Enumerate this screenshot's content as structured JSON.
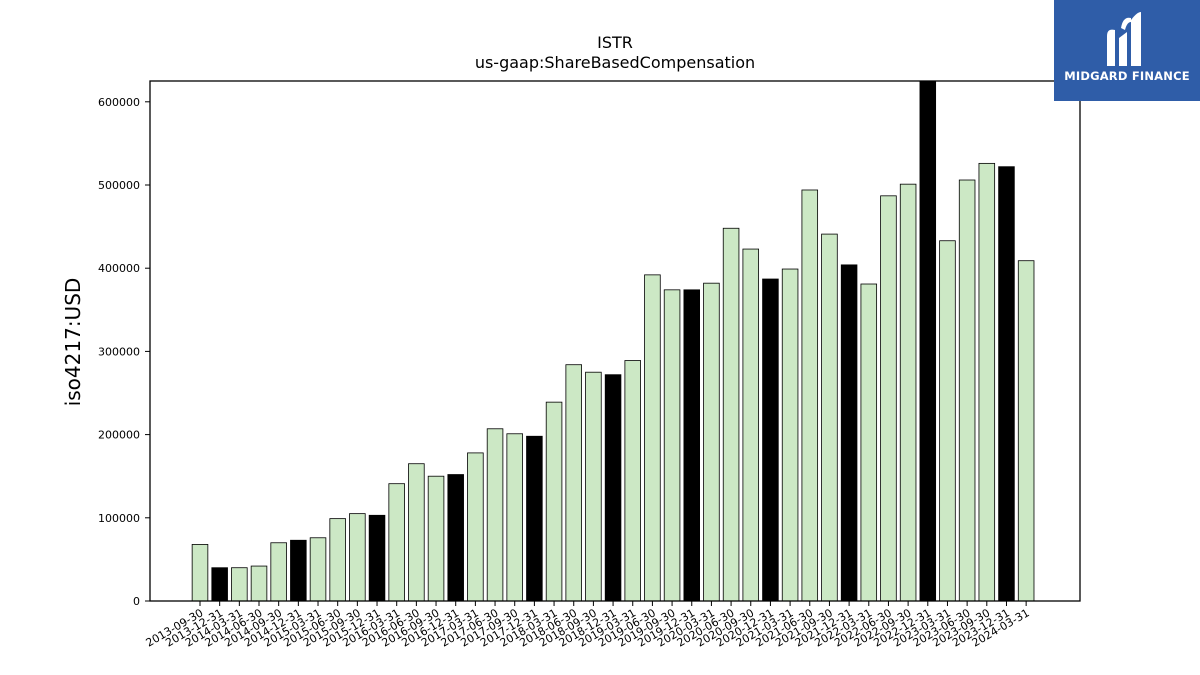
{
  "chart_data": {
    "type": "bar",
    "title": "ISTR",
    "subtitle": "us-gaap:ShareBasedCompensation",
    "xlabel": "",
    "ylabel": "iso4217:USD",
    "ylim": [
      0,
      625000
    ],
    "yticks": [
      0,
      100000,
      200000,
      300000,
      400000,
      500000,
      600000
    ],
    "grid": false,
    "colors": {
      "light": "#cce8c5",
      "dark": "#000000",
      "edge": "#000000"
    },
    "categories": [
      "2013-09-30",
      "2013-12-31",
      "2014-03-31",
      "2014-06-30",
      "2014-09-30",
      "2014-12-31",
      "2015-03-31",
      "2015-06-30",
      "2015-09-30",
      "2015-12-31",
      "2016-03-31",
      "2016-06-30",
      "2016-09-30",
      "2016-12-31",
      "2017-03-31",
      "2017-06-30",
      "2017-09-30",
      "2017-12-31",
      "2018-03-31",
      "2018-06-30",
      "2018-09-30",
      "2018-12-31",
      "2019-03-31",
      "2019-06-30",
      "2019-09-30",
      "2019-12-31",
      "2020-03-31",
      "2020-06-30",
      "2020-09-30",
      "2020-12-31",
      "2021-03-31",
      "2021-06-30",
      "2021-09-30",
      "2021-12-31",
      "2022-03-31",
      "2022-06-30",
      "2022-09-30",
      "2022-12-31",
      "2023-03-31",
      "2023-06-30",
      "2023-09-30",
      "2023-12-31",
      "2024-03-31"
    ],
    "values": [
      68000,
      40000,
      40000,
      42000,
      70000,
      73000,
      76000,
      99000,
      105000,
      103000,
      141000,
      165000,
      150000,
      152000,
      178000,
      207000,
      201000,
      198000,
      239000,
      284000,
      275000,
      272000,
      289000,
      392000,
      374000,
      374000,
      382000,
      448000,
      423000,
      387000,
      399000,
      494000,
      441000,
      404000,
      381000,
      487000,
      501000,
      624000,
      433000,
      506000,
      526000,
      522000,
      409000
    ],
    "highlight": [
      false,
      true,
      false,
      false,
      false,
      true,
      false,
      false,
      false,
      true,
      false,
      false,
      false,
      true,
      false,
      false,
      false,
      true,
      false,
      false,
      false,
      true,
      false,
      false,
      false,
      true,
      false,
      false,
      false,
      true,
      false,
      false,
      false,
      true,
      false,
      false,
      false,
      true,
      false,
      false,
      false,
      true,
      false
    ]
  },
  "logo": {
    "text": "MIDGARD FINANCE"
  }
}
